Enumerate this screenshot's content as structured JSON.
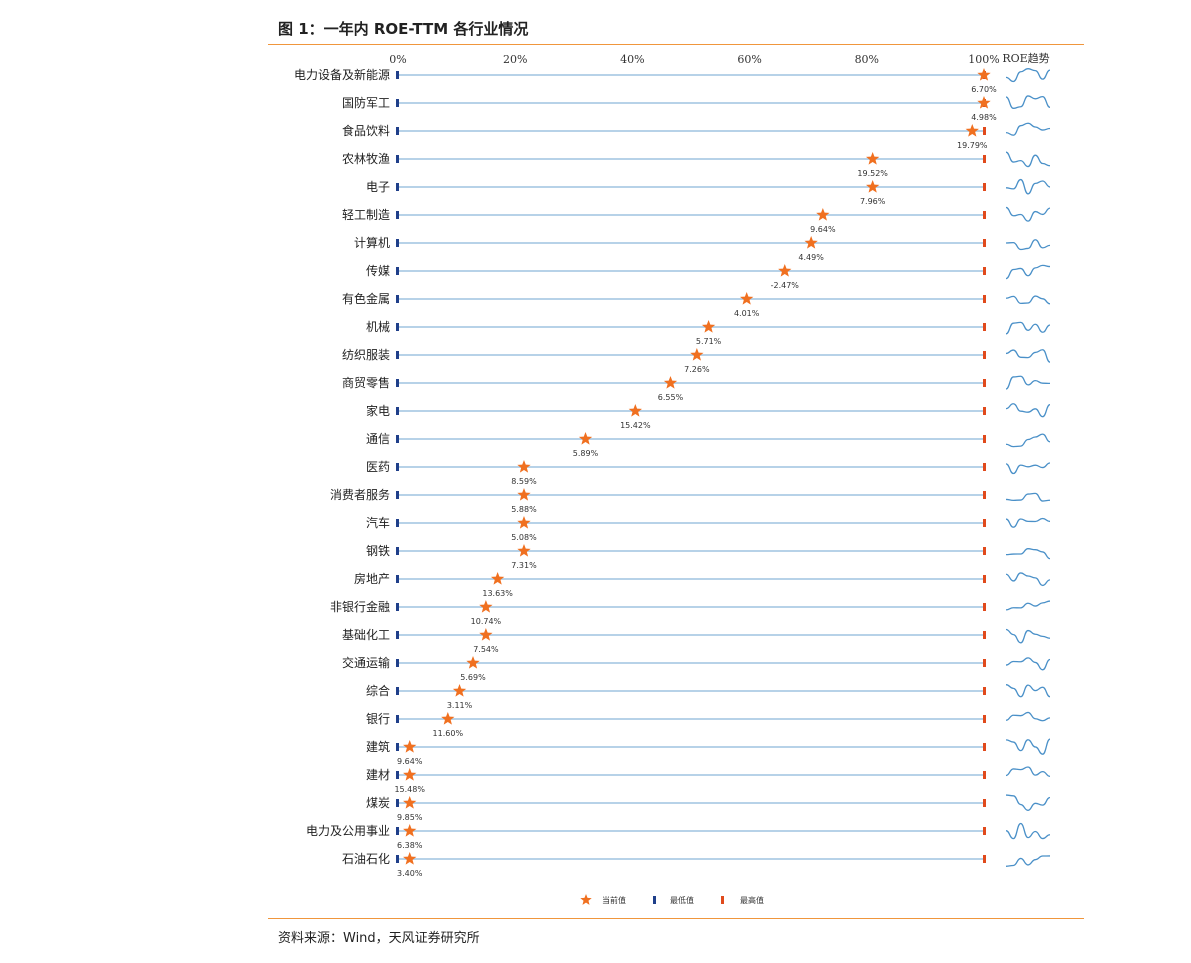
{
  "header": {
    "title": "图 1：一年内 ROE-TTM 各行业情况"
  },
  "footer": {
    "source": "资料来源：Wind，天风证券研究所"
  },
  "colors": {
    "accent": "#f0963c",
    "star": "#f07020",
    "min_marker": "#1f3f8a",
    "max_marker": "#e04a1c",
    "track": "#9fc3e0",
    "trend": "#4a90c8"
  },
  "chart_data": {
    "type": "scatter",
    "xlim": [
      0,
      100
    ],
    "xticks": [
      "0%",
      "20%",
      "40%",
      "60%",
      "80%",
      "100%"
    ],
    "trend_header": "ROE趋势",
    "legend": [
      {
        "key": "current",
        "label": "当前值"
      },
      {
        "key": "min",
        "label": "最低值"
      },
      {
        "key": "max",
        "label": "最高值"
      }
    ],
    "rows": [
      {
        "name": "电力设备及新能源",
        "position": 100,
        "value": "6.70%"
      },
      {
        "name": "国防军工",
        "position": 100,
        "value": "4.98%"
      },
      {
        "name": "食品饮料",
        "position": 98,
        "value": "19.79%"
      },
      {
        "name": "农林牧渔",
        "position": 81,
        "value": "19.52%"
      },
      {
        "name": "电子",
        "position": 81,
        "value": "7.96%"
      },
      {
        "name": "轻工制造",
        "position": 72.5,
        "value": "9.64%"
      },
      {
        "name": "计算机",
        "position": 70.5,
        "value": "4.49%"
      },
      {
        "name": "传媒",
        "position": 66,
        "value": "-2.47%"
      },
      {
        "name": "有色金属",
        "position": 59.5,
        "value": "4.01%"
      },
      {
        "name": "机械",
        "position": 53,
        "value": "5.71%"
      },
      {
        "name": "纺织服装",
        "position": 51,
        "value": "7.26%"
      },
      {
        "name": "商贸零售",
        "position": 46.5,
        "value": "6.55%"
      },
      {
        "name": "家电",
        "position": 40.5,
        "value": "15.42%"
      },
      {
        "name": "通信",
        "position": 32,
        "value": "5.89%"
      },
      {
        "name": "医药",
        "position": 21.5,
        "value": "8.59%"
      },
      {
        "name": "消费者服务",
        "position": 21.5,
        "value": "5.88%"
      },
      {
        "name": "汽车",
        "position": 21.5,
        "value": "5.08%"
      },
      {
        "name": "钢铁",
        "position": 21.5,
        "value": "7.31%"
      },
      {
        "name": "房地产",
        "position": 17,
        "value": "13.63%"
      },
      {
        "name": "非银行金融",
        "position": 15,
        "value": "10.74%"
      },
      {
        "name": "基础化工",
        "position": 15,
        "value": "7.54%"
      },
      {
        "name": "交通运输",
        "position": 12.8,
        "value": "5.69%"
      },
      {
        "name": "综合",
        "position": 10.5,
        "value": "3.11%"
      },
      {
        "name": "银行",
        "position": 8.5,
        "value": "11.60%"
      },
      {
        "name": "建筑",
        "position": 2,
        "value": "9.64%"
      },
      {
        "name": "建材",
        "position": 2,
        "value": "15.48%"
      },
      {
        "name": "煤炭",
        "position": 2,
        "value": "9.85%"
      },
      {
        "name": "电力及公用事业",
        "position": 2,
        "value": "6.38%"
      },
      {
        "name": "石油石化",
        "position": 2,
        "value": "3.40%"
      }
    ]
  }
}
